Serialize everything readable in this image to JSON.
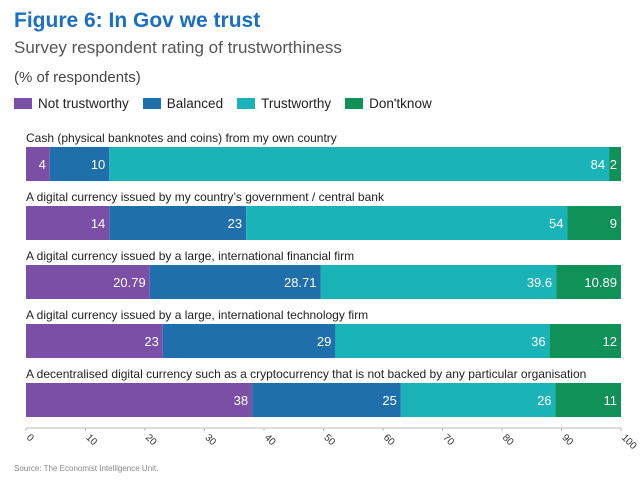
{
  "chart_data": {
    "type": "bar",
    "orientation": "horizontal",
    "stacked": true,
    "title": "Figure 6: In Gov we trust",
    "subtitle": "Survey respondent rating of trustworthiness",
    "unit_label": "(% of respondents)",
    "categories": [
      "Cash (physical banknotes and coins) from my own country",
      "A digital currency issued by my country’s government / central bank",
      "A digital currency issued by a large, international financial firm",
      "A digital currency issued by a large, international technology firm",
      "A decentralised digital currency such as a cryptocurrency that is not backed by any particular organisation"
    ],
    "series": [
      {
        "name": "Not trustworthy",
        "color": "#7b4fa6",
        "values": [
          4,
          14,
          20.79,
          23,
          38
        ]
      },
      {
        "name": "Balanced",
        "color": "#1f6fab",
        "values": [
          10,
          23,
          28.71,
          29,
          25
        ]
      },
      {
        "name": "Trustworthy",
        "color": "#1ab3b8",
        "values": [
          84,
          54,
          39.6,
          36,
          26
        ]
      },
      {
        "name": "Don'tknow",
        "color": "#109157",
        "values": [
          2,
          9,
          10.89,
          12,
          11
        ]
      }
    ],
    "xlim": [
      0,
      100
    ],
    "xticks": [
      "0",
      "10",
      "20",
      "30",
      "40",
      "50",
      "60",
      "70",
      "80",
      "90",
      "100"
    ],
    "source": "Source: The Economist Intelligence Unit."
  }
}
